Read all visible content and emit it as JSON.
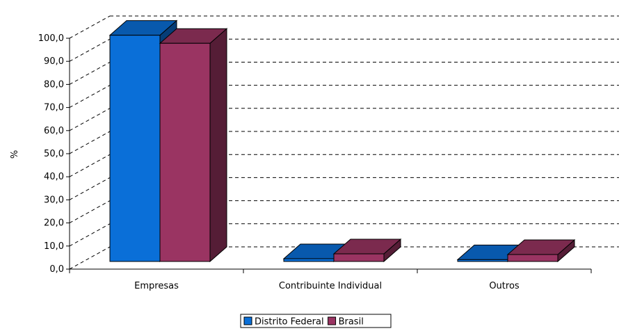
{
  "chart_data": {
    "type": "bar",
    "title": "",
    "xlabel": "",
    "ylabel": "%",
    "ylim": [
      0,
      100
    ],
    "ytick_step": 10,
    "ytick_labels": [
      "0,0",
      "10,0",
      "20,0",
      "30,0",
      "40,0",
      "50,0",
      "60,0",
      "70,0",
      "80,0",
      "90,0",
      "100,0"
    ],
    "categories": [
      "Empresas",
      "Contribuinte Individual",
      "Outros"
    ],
    "series": [
      {
        "name": "Distrito Federal",
        "values": [
          98.0,
          1.2,
          0.8
        ],
        "color": "#0a6fd8"
      },
      {
        "name": "Brasil",
        "values": [
          94.5,
          3.3,
          3.0
        ],
        "color": "#9a3462"
      }
    ],
    "grid": true,
    "grid_style": "dashed",
    "three_d": true,
    "legend": {
      "placement": "bottom-center"
    }
  }
}
